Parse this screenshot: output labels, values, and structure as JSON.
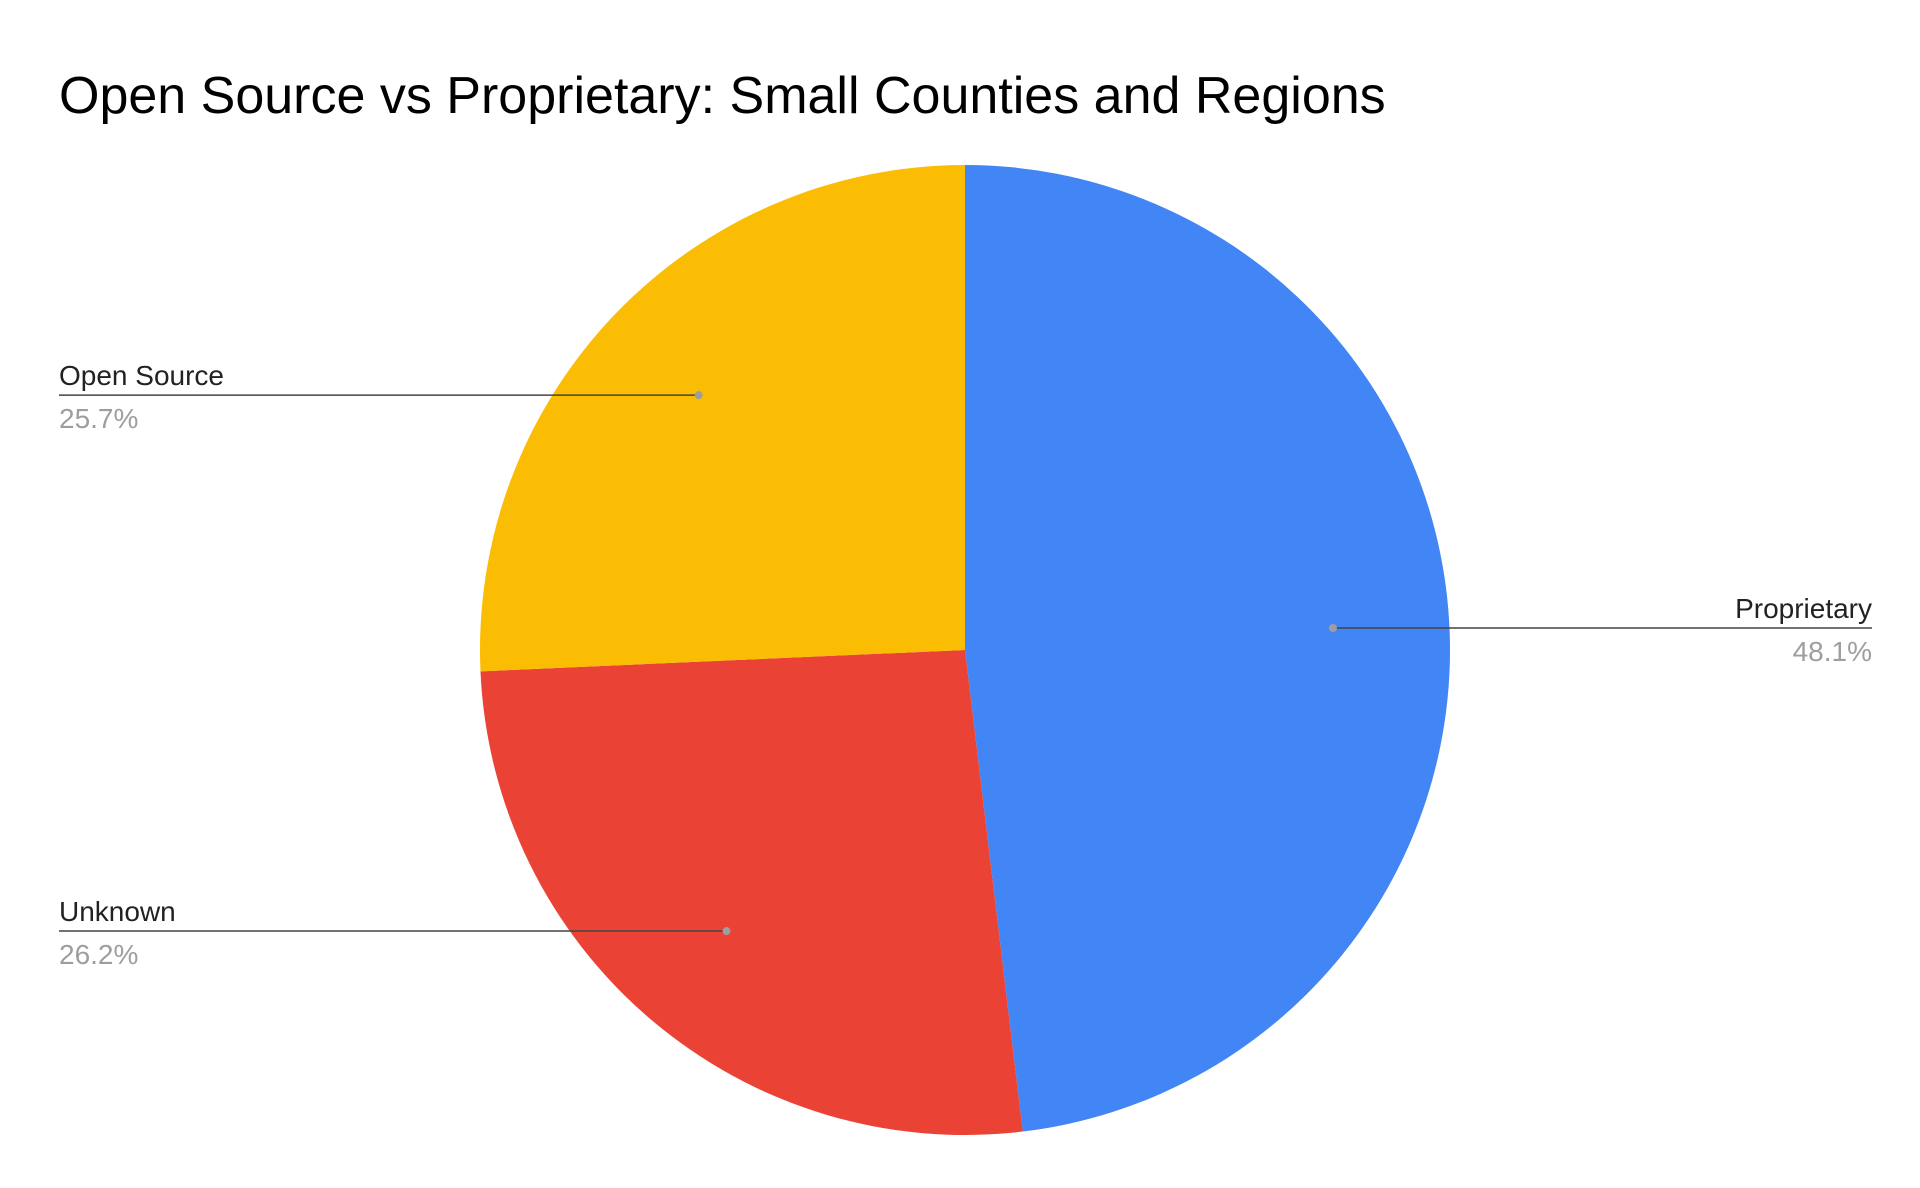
{
  "chart_data": {
    "type": "pie",
    "title": "Open Source vs Proprietary: Small Counties and Regions",
    "slices": [
      {
        "label": "Proprietary",
        "value": 48.1,
        "value_label": "48.1%",
        "color": "#4285F4",
        "label_side": "right"
      },
      {
        "label": "Unknown",
        "value": 26.2,
        "value_label": "26.2%",
        "color": "#EA4335",
        "label_side": "left"
      },
      {
        "label": "Open Source",
        "value": 25.7,
        "value_label": "25.7%",
        "color": "#FBBC04",
        "label_side": "left"
      }
    ],
    "start_angle_deg": 0,
    "direction": "clockwise",
    "legend": "none"
  }
}
